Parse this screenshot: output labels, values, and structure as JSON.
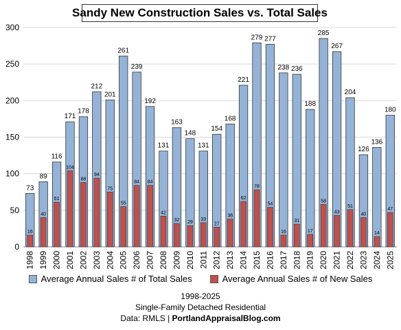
{
  "chart_data": {
    "type": "bar",
    "title": "Sandy New Construction Sales vs. Total Sales",
    "categories": [
      "1998",
      "1999",
      "2000",
      "2001",
      "2002",
      "2003",
      "2004",
      "2005",
      "2006",
      "2007",
      "2008",
      "2009",
      "2010",
      "2011",
      "2012",
      "2013",
      "2014",
      "2015",
      "2016",
      "2017",
      "2018",
      "2019",
      "2020",
      "2021",
      "2022",
      "2023",
      "2024",
      "2025"
    ],
    "series": [
      {
        "name": "Average Annual Sales # of Total Sales",
        "color": "#95b3d7",
        "values": [
          73,
          89,
          116,
          171,
          178,
          212,
          201,
          261,
          239,
          192,
          131,
          163,
          148,
          131,
          154,
          168,
          221,
          279,
          277,
          238,
          236,
          188,
          285,
          267,
          204,
          126,
          136,
          180
        ]
      },
      {
        "name": "Average Annual Sales # of New Sales",
        "color": "#c0504d",
        "values": [
          16,
          40,
          61,
          104,
          88,
          94,
          75,
          55,
          84,
          84,
          42,
          32,
          29,
          33,
          27,
          38,
          62,
          78,
          54,
          16,
          31,
          17,
          58,
          43,
          51,
          40,
          14,
          47
        ]
      }
    ],
    "ylim": [
      0,
      300
    ],
    "yticks": [
      0,
      50,
      100,
      150,
      200,
      250,
      300
    ],
    "grid": true,
    "legend": "bottom"
  },
  "footer": {
    "line1": "1998-2025",
    "line2": "Single-Family Detached Residential",
    "line3_prefix": "Data: RMLS | ",
    "line3_site": "PortlandAppraisalBlog.com"
  }
}
